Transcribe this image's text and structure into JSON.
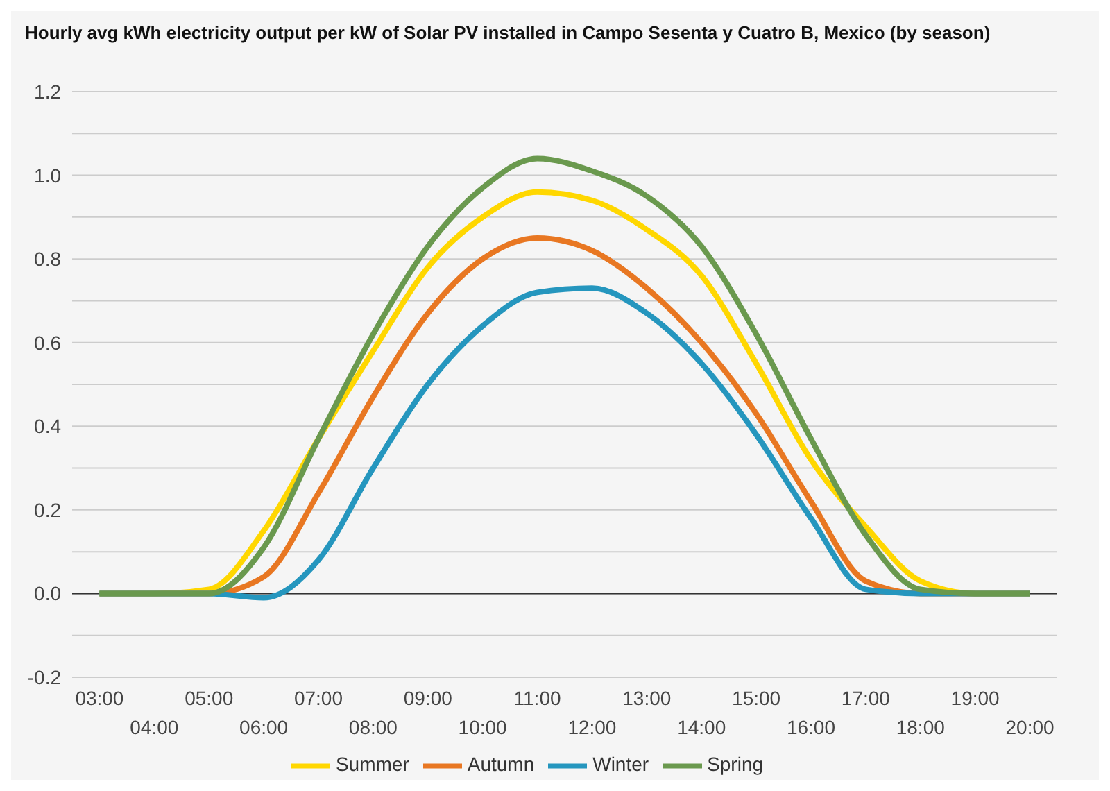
{
  "chart_data": {
    "type": "line",
    "title": "Hourly avg kWh electricity output per kW of Solar PV installed in Campo Sesenta y Cuatro B, Mexico (by season)",
    "categories": [
      "03:00",
      "04:00",
      "05:00",
      "06:00",
      "07:00",
      "08:00",
      "09:00",
      "10:00",
      "11:00",
      "12:00",
      "13:00",
      "14:00",
      "15:00",
      "16:00",
      "17:00",
      "18:00",
      "19:00",
      "20:00"
    ],
    "series": [
      {
        "name": "Summer",
        "color": "#ffd700",
        "values": [
          0,
          0,
          0.01,
          0.15,
          0.37,
          0.58,
          0.78,
          0.9,
          0.96,
          0.94,
          0.87,
          0.76,
          0.55,
          0.32,
          0.16,
          0.03,
          0,
          0
        ]
      },
      {
        "name": "Autumn",
        "color": "#e87722",
        "values": [
          0,
          0,
          0,
          0.04,
          0.24,
          0.47,
          0.67,
          0.8,
          0.85,
          0.82,
          0.73,
          0.6,
          0.43,
          0.22,
          0.03,
          0,
          0,
          0
        ]
      },
      {
        "name": "Winter",
        "color": "#2596be",
        "values": [
          0,
          0,
          0,
          -0.01,
          0.08,
          0.3,
          0.5,
          0.64,
          0.72,
          0.73,
          0.67,
          0.55,
          0.38,
          0.18,
          0.01,
          0,
          0,
          0
        ]
      },
      {
        "name": "Spring",
        "color": "#6a994e",
        "values": [
          0,
          0,
          0,
          0.11,
          0.37,
          0.62,
          0.83,
          0.97,
          1.04,
          1.01,
          0.95,
          0.83,
          0.62,
          0.37,
          0.14,
          0.01,
          0,
          0
        ]
      }
    ],
    "ylim": [
      -0.2,
      1.2
    ],
    "yticks": [
      -0.2,
      {
        "value": -0.1,
        "label": null
      },
      {
        "value": 0,
        "label": "0.0"
      },
      {
        "value": 0.1,
        "label": null
      },
      0.2,
      {
        "value": 0.3,
        "label": null
      },
      0.4,
      {
        "value": 0.5,
        "label": null
      },
      0.6,
      {
        "value": 0.7,
        "label": null
      },
      0.8,
      {
        "value": 0.9,
        "label": null
      },
      {
        "value": 1,
        "label": "1.0"
      },
      {
        "value": 1.1,
        "label": null
      },
      1.2
    ],
    "ref_lines": [
      {
        "axis": "y",
        "value": 0,
        "color": "#333333"
      }
    ],
    "grid": "y",
    "legend": "bottom",
    "marker": "none",
    "line_style": "solid"
  }
}
